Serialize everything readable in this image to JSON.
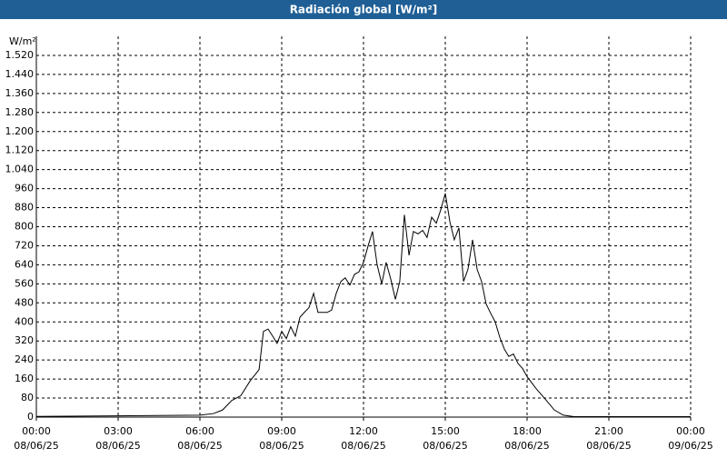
{
  "chart_data": {
    "type": "line",
    "title": "Radiación global [W/m²]",
    "ylabel": "W/m²",
    "xlim": [
      0,
      24
    ],
    "xticks": [
      {
        "value": 0,
        "label": [
          "00:00",
          "08/06/25"
        ]
      },
      {
        "value": 3,
        "label": [
          "03:00",
          "08/06/25"
        ]
      },
      {
        "value": 6,
        "label": [
          "06:00",
          "08/06/25"
        ]
      },
      {
        "value": 9,
        "label": [
          "09:00",
          "08/06/25"
        ]
      },
      {
        "value": 12,
        "label": [
          "12:00",
          "08/06/25"
        ]
      },
      {
        "value": 15,
        "label": [
          "15:00",
          "08/06/25"
        ]
      },
      {
        "value": 18,
        "label": [
          "18:00",
          "08/06/25"
        ]
      },
      {
        "value": 21,
        "label": [
          "21:00",
          "08/06/25"
        ]
      },
      {
        "value": 24,
        "label": [
          "00:00",
          "09/06/25"
        ]
      }
    ],
    "ylim": [
      0,
      1600
    ],
    "yticks": [
      0,
      80,
      160,
      240,
      320,
      400,
      480,
      560,
      640,
      720,
      800,
      880,
      960,
      {
        "value": 1040,
        "label": "1.040"
      },
      {
        "value": 1120,
        "label": "1.120"
      },
      {
        "value": 1200,
        "label": "1.200"
      },
      {
        "value": 1280,
        "label": "1.280"
      },
      {
        "value": 1360,
        "label": "1.360"
      },
      {
        "value": 1440,
        "label": "1.440"
      },
      {
        "value": 1520,
        "label": "1.520"
      }
    ],
    "grid": true,
    "series": [
      {
        "name": "Radiación global",
        "color": "#000000",
        "x": [
          0,
          6.0,
          6.5,
          6.83,
          7.17,
          7.5,
          7.83,
          8.17,
          8.33,
          8.5,
          8.67,
          8.83,
          9.0,
          9.17,
          9.33,
          9.5,
          9.67,
          9.83,
          10.0,
          10.17,
          10.33,
          10.67,
          10.83,
          11.0,
          11.17,
          11.33,
          11.5,
          11.67,
          11.83,
          12.0,
          12.17,
          12.33,
          12.5,
          12.67,
          12.83,
          13.0,
          13.17,
          13.33,
          13.5,
          13.67,
          13.83,
          14.0,
          14.17,
          14.33,
          14.5,
          14.67,
          14.83,
          15.0,
          15.17,
          15.33,
          15.5,
          15.67,
          15.83,
          16.0,
          16.17,
          16.33,
          16.5,
          16.67,
          16.83,
          17.0,
          17.17,
          17.33,
          17.5,
          17.67,
          17.83,
          18.0,
          18.33,
          18.67,
          19.0,
          19.33,
          19.73,
          20.17,
          24
        ],
        "values": [
          3,
          8,
          15,
          30,
          70,
          90,
          150,
          200,
          360,
          370,
          340,
          310,
          360,
          330,
          380,
          340,
          420,
          440,
          460,
          520,
          440,
          440,
          450,
          520,
          570,
          585,
          555,
          600,
          610,
          650,
          720,
          780,
          640,
          560,
          650,
          580,
          495,
          570,
          850,
          680,
          780,
          770,
          785,
          755,
          840,
          815,
          870,
          940,
          820,
          745,
          795,
          570,
          620,
          745,
          620,
          570,
          475,
          435,
          400,
          335,
          285,
          255,
          265,
          225,
          205,
          170,
          120,
          75,
          30,
          8,
          2,
          2,
          2
        ]
      }
    ]
  }
}
